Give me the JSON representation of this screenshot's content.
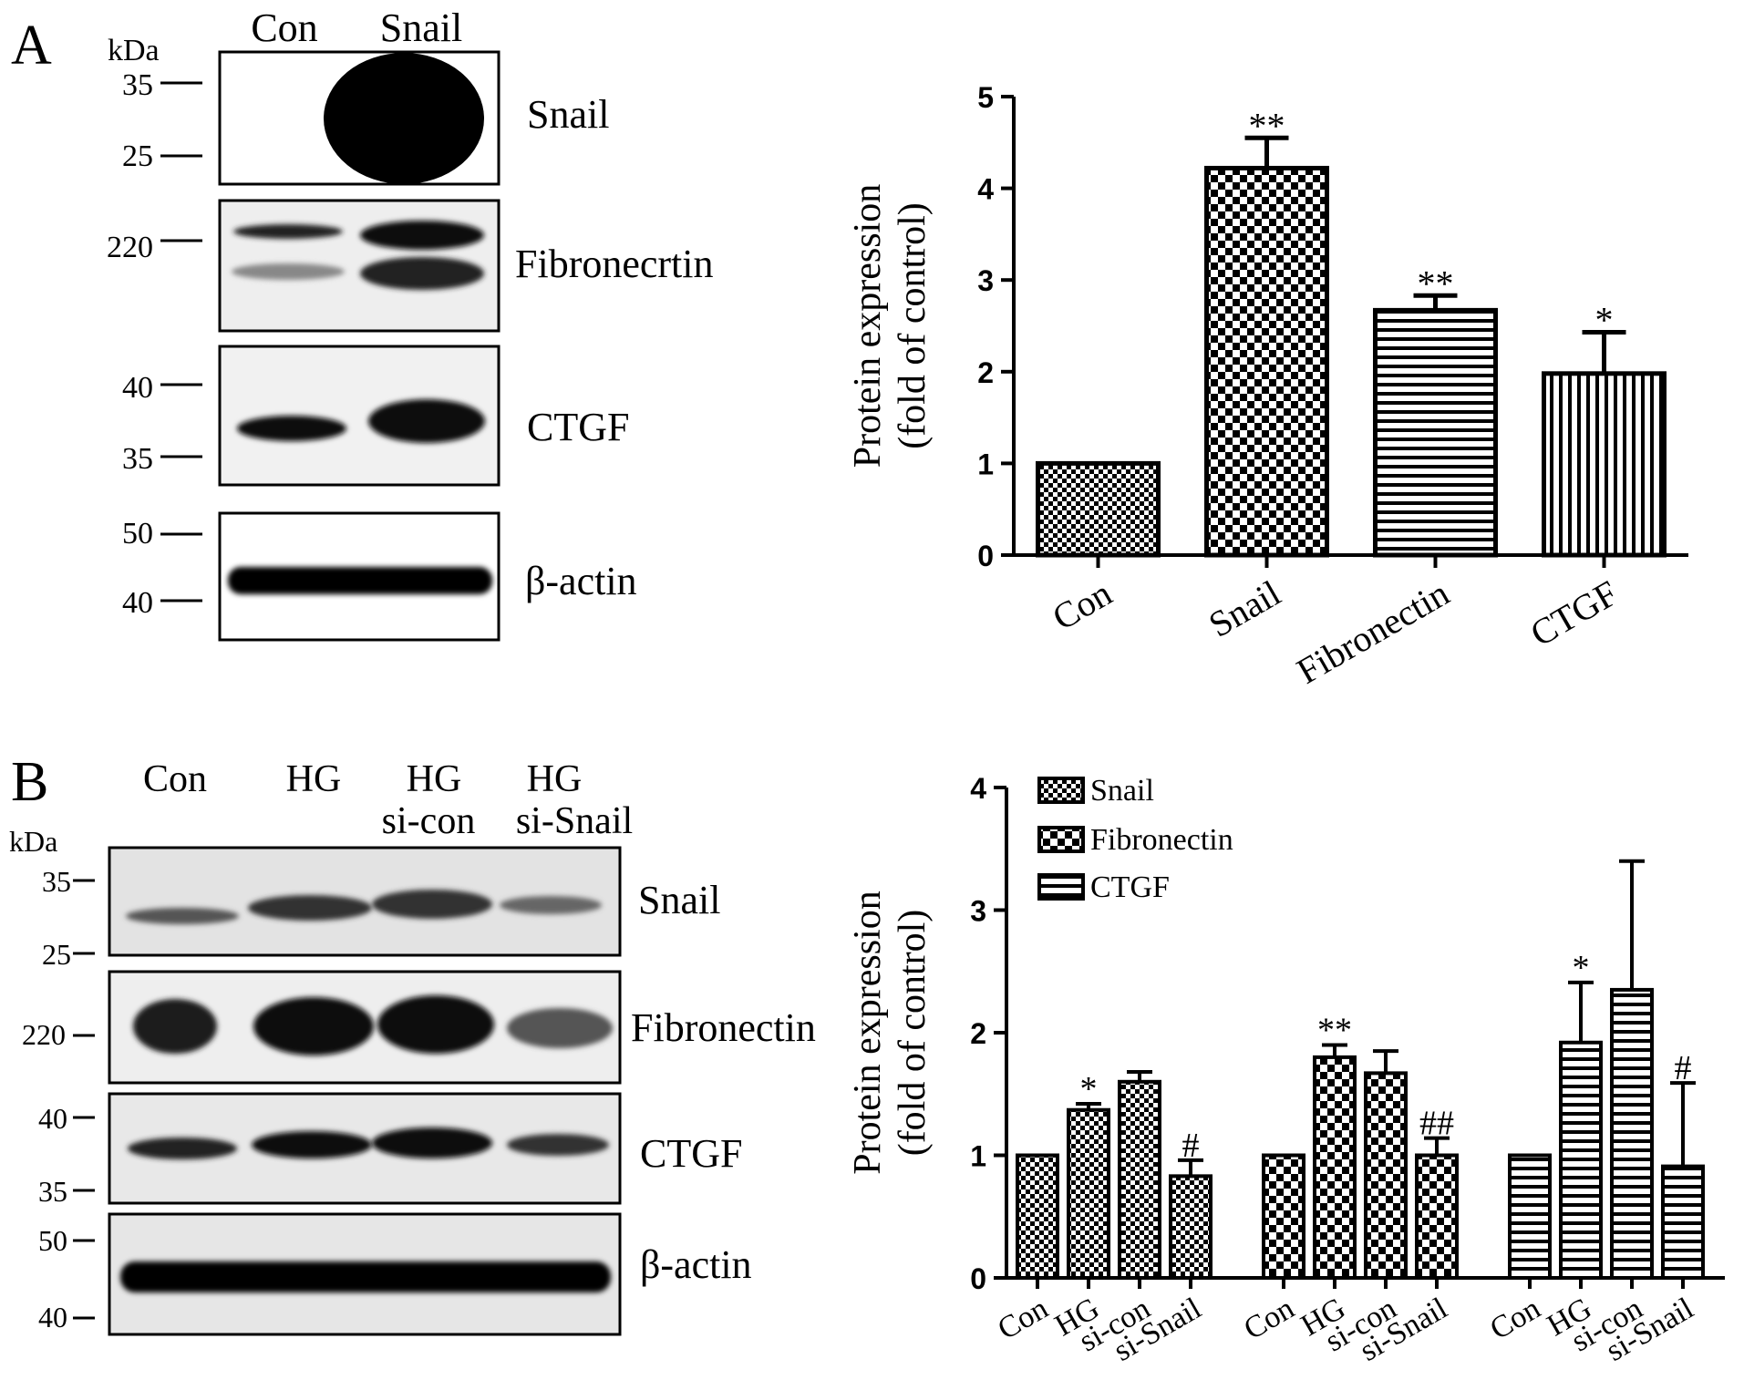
{
  "panel_a": {
    "letter": "A",
    "blot": {
      "kda_label": "kDa",
      "lanes": [
        "Con",
        "Snail"
      ],
      "rows": [
        {
          "label": "Snail",
          "markers": [
            "35",
            "25"
          ]
        },
        {
          "label": "Fibronecrtin",
          "markers": [
            "220"
          ]
        },
        {
          "label": "CTGF",
          "markers": [
            "40",
            "35"
          ]
        },
        {
          "label": "β-actin",
          "markers": [
            "50",
            "40"
          ]
        }
      ]
    }
  },
  "panel_b": {
    "letter": "B",
    "blot": {
      "kda_label": "kDa",
      "lanes": [
        {
          "line1": "Con",
          "line2": ""
        },
        {
          "line1": "HG",
          "line2": ""
        },
        {
          "line1": "HG",
          "line2": "si-con"
        },
        {
          "line1": "HG",
          "line2": "si-Snail"
        }
      ],
      "rows": [
        {
          "label": "Snail",
          "markers": [
            "35",
            "25"
          ]
        },
        {
          "label": "Fibronectin",
          "markers": [
            "220"
          ]
        },
        {
          "label": "CTGF",
          "markers": [
            "40",
            "35"
          ]
        },
        {
          "label": "β-actin",
          "markers": [
            "50",
            "40"
          ]
        }
      ]
    }
  },
  "chart_data": [
    {
      "type": "bar",
      "title": "",
      "xlabel": "",
      "ylabel": [
        "Protein expression",
        "(fold of control)"
      ],
      "ylim": [
        0,
        5
      ],
      "yticks": [
        "0",
        "1",
        "2",
        "3",
        "4",
        "5"
      ],
      "categories": [
        "Con",
        "Snail",
        "Fibronectin",
        "CTGF"
      ],
      "values": [
        1.0,
        4.22,
        2.67,
        1.98
      ],
      "errors": [
        0.0,
        0.33,
        0.16,
        0.45
      ],
      "significance": [
        "",
        "**",
        "**",
        "*"
      ],
      "patterns": [
        "fine-checker",
        "checker",
        "h-lines",
        "v-lines"
      ],
      "grid": false,
      "legend": "none"
    },
    {
      "type": "bar",
      "title": "",
      "xlabel": "",
      "ylabel": [
        "Protein expression",
        "(fold of control)"
      ],
      "ylim": [
        0,
        4
      ],
      "yticks": [
        "0",
        "1",
        "2",
        "3",
        "4"
      ],
      "categories": [
        "Con",
        "HG",
        "si-con",
        "si-Snail"
      ],
      "series": [
        {
          "name": "Snail",
          "pattern": "fine-checker",
          "values": [
            1.0,
            1.37,
            1.6,
            0.83
          ],
          "errors": [
            0.0,
            0.05,
            0.08,
            0.13
          ],
          "significance": [
            "",
            "*",
            "",
            "#"
          ]
        },
        {
          "name": "Fibronectin",
          "pattern": "checker",
          "values": [
            1.0,
            1.8,
            1.67,
            1.0
          ],
          "errors": [
            0.0,
            0.1,
            0.18,
            0.14
          ],
          "significance": [
            "",
            "**",
            "",
            "##"
          ]
        },
        {
          "name": "CTGF",
          "pattern": "h-lines",
          "values": [
            1.0,
            1.92,
            2.35,
            0.91
          ],
          "errors": [
            0.0,
            0.49,
            1.05,
            0.68
          ],
          "significance": [
            "",
            "*",
            "",
            "#"
          ]
        }
      ],
      "grid": false,
      "legend": "top-left"
    }
  ]
}
